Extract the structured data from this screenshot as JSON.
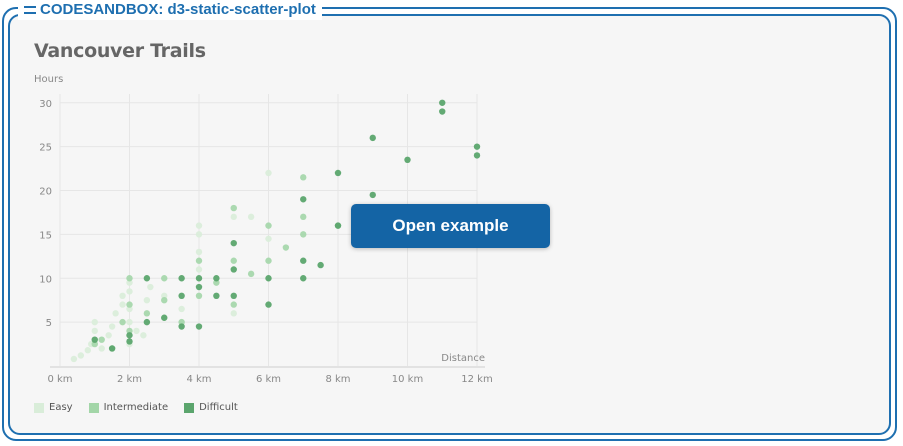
{
  "sandbox": {
    "label": "CODESANDBOX: d3-static-scatter-plot",
    "border_color": "#1e6fb0"
  },
  "overlay": {
    "button_label": "Open example",
    "button_color": "#1464a5"
  },
  "chart_data": {
    "type": "scatter",
    "title": "Vancouver Trails",
    "xlabel": "Distance",
    "ylabel": "Hours",
    "xlim": [
      0,
      12
    ],
    "ylim": [
      0,
      31
    ],
    "grid": true,
    "legend_position": "bottom-left",
    "x_ticks": [
      {
        "value": 0,
        "label": "0 km"
      },
      {
        "value": 2,
        "label": "2 km"
      },
      {
        "value": 4,
        "label": "4 km"
      },
      {
        "value": 6,
        "label": "6 km"
      },
      {
        "value": 8,
        "label": "8 km"
      },
      {
        "value": 10,
        "label": "10 km"
      },
      {
        "value": 12,
        "label": "12 km"
      }
    ],
    "y_ticks": [
      {
        "value": 5,
        "label": "5"
      },
      {
        "value": 10,
        "label": "10"
      },
      {
        "value": 15,
        "label": "15"
      },
      {
        "value": 20,
        "label": "20"
      },
      {
        "value": 25,
        "label": "25"
      },
      {
        "value": 30,
        "label": "30"
      }
    ],
    "series": [
      {
        "name": "Easy",
        "color": "#d9edd9",
        "points": [
          [
            0.4,
            0.8
          ],
          [
            0.6,
            1.2
          ],
          [
            0.8,
            1.8
          ],
          [
            0.9,
            2.5
          ],
          [
            1.0,
            3.0
          ],
          [
            1.0,
            4.0
          ],
          [
            1.0,
            5.0
          ],
          [
            1.2,
            2.0
          ],
          [
            1.4,
            3.5
          ],
          [
            1.5,
            4.5
          ],
          [
            1.6,
            6.0
          ],
          [
            1.8,
            7.0
          ],
          [
            1.8,
            8.0
          ],
          [
            2.0,
            2.5
          ],
          [
            2.0,
            5.0
          ],
          [
            2.0,
            6.5
          ],
          [
            2.0,
            8.5
          ],
          [
            2.0,
            9.5
          ],
          [
            2.2,
            4.0
          ],
          [
            2.4,
            3.5
          ],
          [
            2.5,
            7.5
          ],
          [
            2.6,
            9.0
          ],
          [
            3.0,
            5.5
          ],
          [
            3.0,
            8.0
          ],
          [
            3.5,
            6.5
          ],
          [
            4.0,
            11.0
          ],
          [
            4.0,
            13.0
          ],
          [
            4.0,
            15.0
          ],
          [
            4.0,
            16.0
          ],
          [
            5.0,
            6.0
          ],
          [
            5.0,
            17.0
          ],
          [
            5.5,
            17.0
          ],
          [
            6.0,
            14.5
          ],
          [
            6.0,
            22.0
          ]
        ]
      },
      {
        "name": "Intermediate",
        "color": "#a3d6a8",
        "points": [
          [
            1.0,
            2.5
          ],
          [
            1.2,
            3.0
          ],
          [
            1.5,
            2.0
          ],
          [
            1.8,
            5.0
          ],
          [
            2.0,
            4.0
          ],
          [
            2.0,
            7.0
          ],
          [
            2.0,
            10.0
          ],
          [
            2.5,
            6.0
          ],
          [
            3.0,
            7.5
          ],
          [
            3.0,
            10.0
          ],
          [
            3.5,
            5.0
          ],
          [
            4.0,
            8.0
          ],
          [
            4.0,
            12.0
          ],
          [
            4.5,
            9.5
          ],
          [
            5.0,
            7.0
          ],
          [
            5.0,
            12.0
          ],
          [
            5.0,
            18.0
          ],
          [
            5.5,
            10.5
          ],
          [
            6.0,
            12.0
          ],
          [
            6.0,
            16.0
          ],
          [
            6.5,
            13.5
          ],
          [
            7.0,
            15.0
          ],
          [
            7.0,
            17.0
          ],
          [
            7.0,
            21.5
          ],
          [
            8.0,
            16.0
          ]
        ]
      },
      {
        "name": "Difficult",
        "color": "#5ba56d",
        "points": [
          [
            1.0,
            3.0
          ],
          [
            1.5,
            2.0
          ],
          [
            2.0,
            2.8
          ],
          [
            2.0,
            3.5
          ],
          [
            2.5,
            5.0
          ],
          [
            2.5,
            10.0
          ],
          [
            3.0,
            5.5
          ],
          [
            3.5,
            4.5
          ],
          [
            3.5,
            8.0
          ],
          [
            3.5,
            10.0
          ],
          [
            4.0,
            4.5
          ],
          [
            4.0,
            9.0
          ],
          [
            4.0,
            10.0
          ],
          [
            4.5,
            8.0
          ],
          [
            4.5,
            10.0
          ],
          [
            5.0,
            8.0
          ],
          [
            5.0,
            11.0
          ],
          [
            5.0,
            14.0
          ],
          [
            6.0,
            7.0
          ],
          [
            6.0,
            10.0
          ],
          [
            7.0,
            10.0
          ],
          [
            7.0,
            12.0
          ],
          [
            7.0,
            19.0
          ],
          [
            7.5,
            11.5
          ],
          [
            8.0,
            16.0
          ],
          [
            8.0,
            22.0
          ],
          [
            9.0,
            19.5
          ],
          [
            9.0,
            26.0
          ],
          [
            10.0,
            23.5
          ],
          [
            11.0,
            29.0
          ],
          [
            11.0,
            30.0
          ],
          [
            12.0,
            24.0
          ],
          [
            12.0,
            25.0
          ]
        ]
      }
    ]
  }
}
